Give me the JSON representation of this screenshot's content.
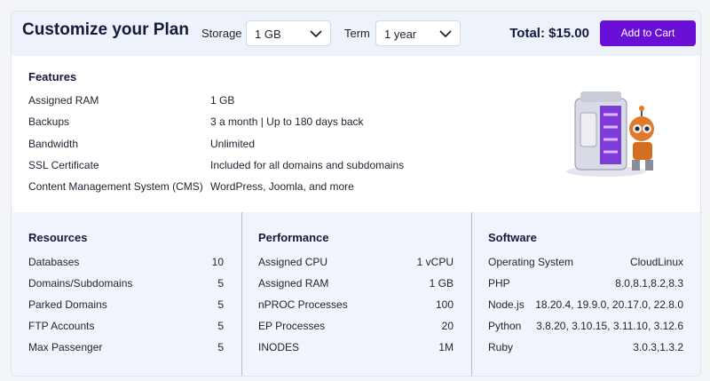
{
  "header": {
    "title": "Customize your Plan",
    "storage_label": "Storage",
    "storage_value": "1 GB",
    "term_label": "Term",
    "term_value": "1 year",
    "total": "Total: $15.00",
    "button": "Add to Cart"
  },
  "features": {
    "title": "Features",
    "rows": [
      [
        "Assigned RAM",
        "1 GB"
      ],
      [
        "Backups",
        "3 a month | Up to 180 days back"
      ],
      [
        "Bandwidth",
        "Unlimited"
      ],
      [
        "SSL Certificate",
        "Included for all domains and subdomains"
      ],
      [
        "Content Management System (CMS)",
        "WordPress, Joomla, and more"
      ]
    ]
  },
  "panels": [
    {
      "title": "Resources",
      "rows": [
        [
          "Databases",
          "10"
        ],
        [
          "Domains/Subdomains",
          "5"
        ],
        [
          "Parked Domains",
          "5"
        ],
        [
          "FTP Accounts",
          "5"
        ],
        [
          "Max Passenger",
          "5"
        ]
      ]
    },
    {
      "title": "Performance",
      "rows": [
        [
          "Assigned CPU",
          "1 vCPU"
        ],
        [
          "Assigned RAM",
          "1 GB"
        ],
        [
          "nPROC Processes",
          "100"
        ],
        [
          "EP Processes",
          "20"
        ],
        [
          "INODES",
          "1M"
        ]
      ]
    },
    {
      "title": "Software",
      "rows": [
        [
          "Operating System",
          "CloudLinux"
        ],
        [
          "PHP",
          "8.0,8.1,8.2,8.3"
        ],
        [
          "Node.js",
          "18.20.4, 19.9.0, 20.17.0, 22.8.0"
        ],
        [
          "Python",
          "3.8.20, 3.10.15, 3.11.10, 3.12.6"
        ],
        [
          "Ruby",
          "3.0.3,1.3.2"
        ]
      ]
    }
  ]
}
